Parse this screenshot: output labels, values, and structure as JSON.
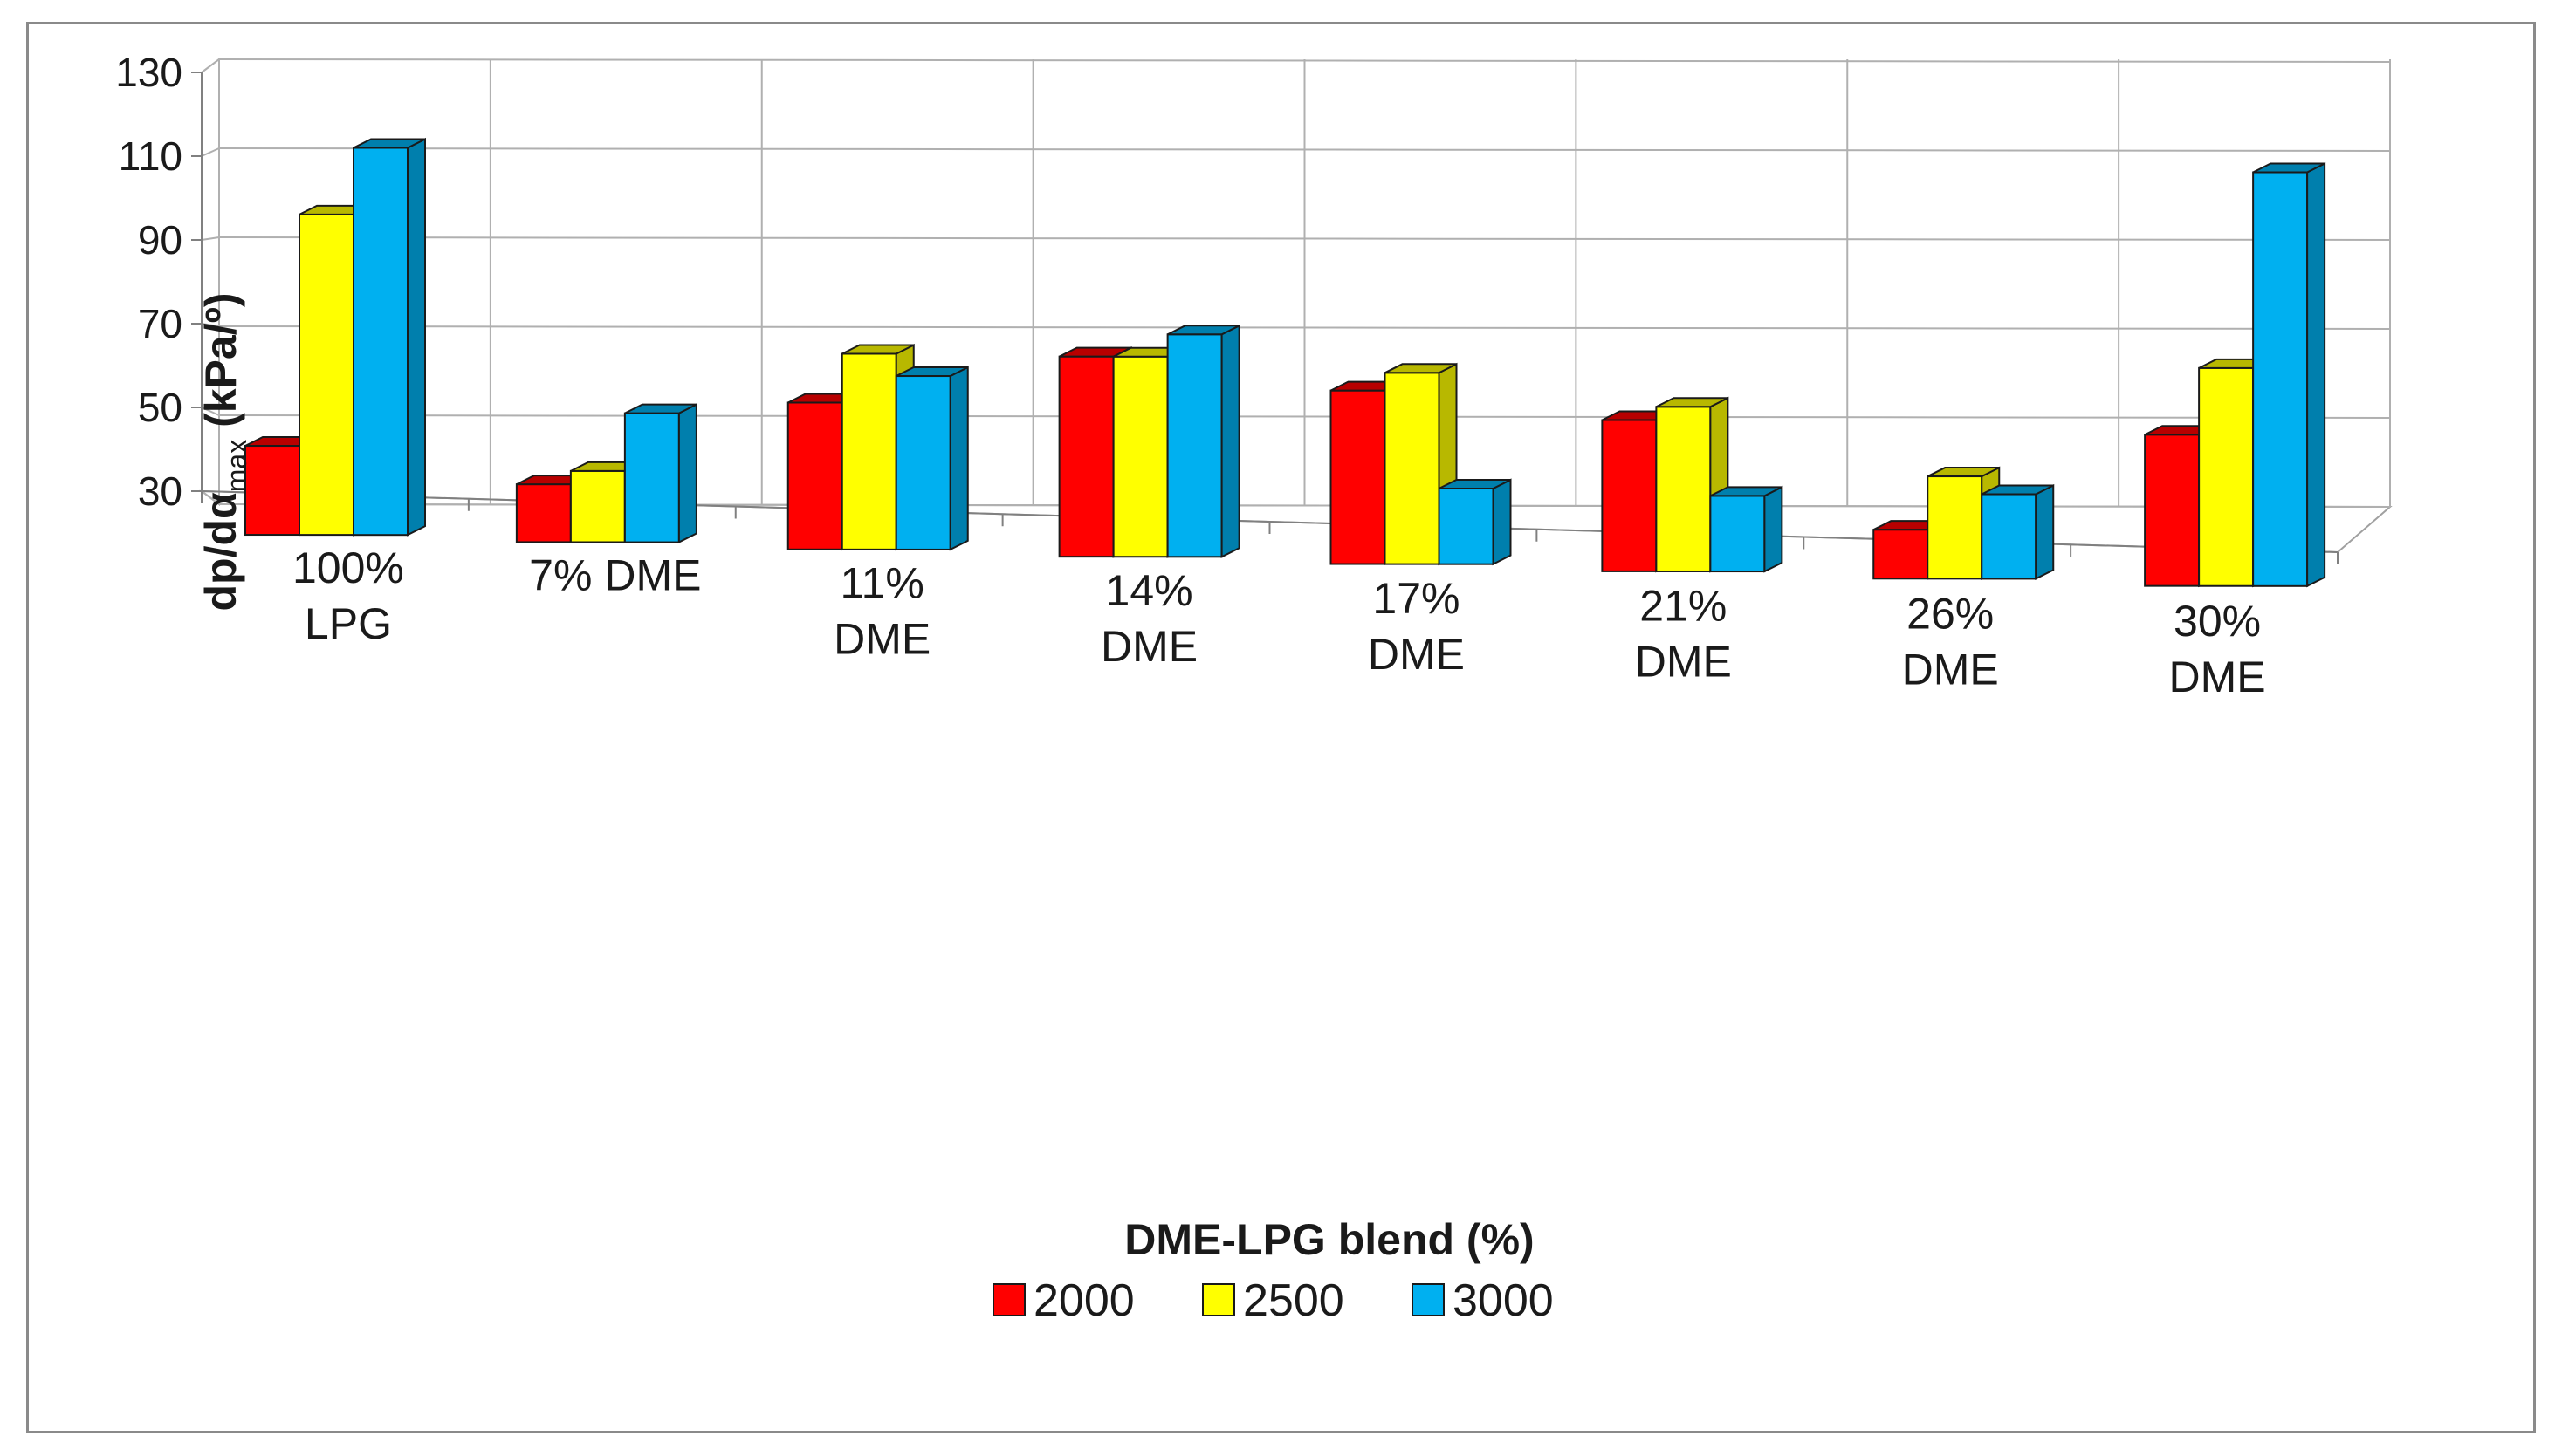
{
  "chart_data": {
    "type": "bar",
    "title": "",
    "xlabel": "DME-LPG blend (%)",
    "ylabel": {
      "main": "dp/dα",
      "subscript": "max",
      "unit": " (kPa/º)"
    },
    "ylim": [
      30,
      130
    ],
    "yticks": [
      30,
      50,
      70,
      90,
      110,
      130
    ],
    "ytick_labels": [
      "30",
      "50",
      "70",
      "90",
      "110",
      "130"
    ],
    "grid": true,
    "legend_position": "bottom-center",
    "categories": [
      [
        "100%",
        "LPG"
      ],
      [
        "7% DME"
      ],
      [
        "11%",
        "DME"
      ],
      [
        "14%",
        "DME"
      ],
      [
        "17%",
        "DME"
      ],
      [
        "21%",
        "DME"
      ],
      [
        "26%",
        "DME"
      ],
      [
        "30%",
        "DME"
      ]
    ],
    "series": [
      {
        "name": "2000",
        "color": "#ff0000",
        "values": [
          50,
          43,
          63,
          75,
          69,
          64,
          41,
          64
        ]
      },
      {
        "name": "2500",
        "color": "#ffff00",
        "values": [
          102,
          46,
          74,
          75,
          73,
          67,
          53,
          79
        ]
      },
      {
        "name": "3000",
        "color": "#00b0f0",
        "values": [
          117,
          59,
          69,
          80,
          47,
          47,
          49,
          123
        ]
      }
    ]
  }
}
